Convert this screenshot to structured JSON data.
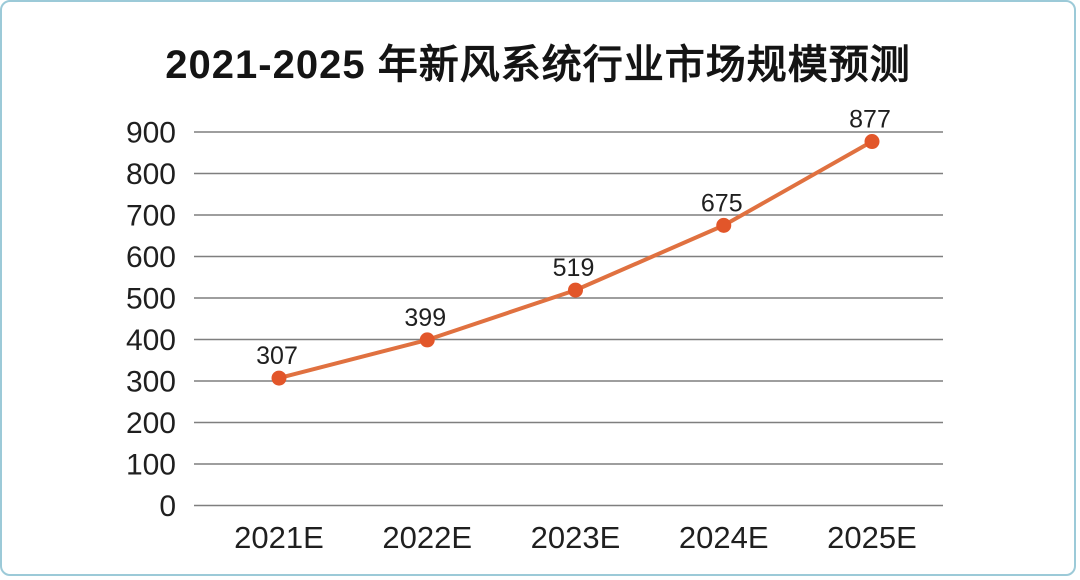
{
  "card": {
    "border_color": "#9ccad8",
    "background": "#ffffff"
  },
  "title": "2021-2025 年新风系统行业市场规模预测",
  "chart_data": {
    "type": "line",
    "title": "2021-2025 年新风系统行业市场规模预测",
    "categories": [
      "2021E",
      "2022E",
      "2023E",
      "2024E",
      "2025E"
    ],
    "values": [
      307,
      399,
      519,
      675,
      877
    ],
    "data_labels": [
      "307",
      "399",
      "519",
      "675",
      "877"
    ],
    "xlabel": "",
    "ylabel": "",
    "ylim": [
      0,
      900
    ],
    "yticks": [
      0,
      100,
      200,
      300,
      400,
      500,
      600,
      700,
      800,
      900
    ],
    "grid": true,
    "legend_position": "none",
    "line_color": "#e07140",
    "marker_color": "#e2562a",
    "gridline_color": "#7f7f7f",
    "tick_label_color": "#1f1f1f",
    "data_label_color": "#1f1f1f"
  }
}
